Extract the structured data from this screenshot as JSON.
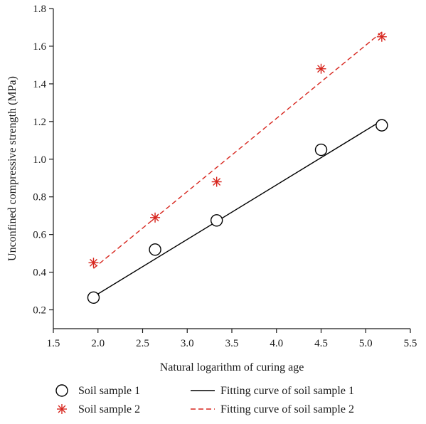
{
  "chart_data": {
    "type": "scatter",
    "title": "",
    "xlabel": "Natural logarithm of curing age",
    "ylabel": "Unconfined compressive strength (MPa)",
    "xlim": [
      1.5,
      5.5
    ],
    "ylim": [
      0.1,
      1.8
    ],
    "xticks": [
      "1.5",
      "2.0",
      "2.5",
      "3.0",
      "3.5",
      "4.0",
      "4.5",
      "5.0",
      "5.5"
    ],
    "yticks": [
      "0.2",
      "0.4",
      "0.6",
      "0.8",
      "1.0",
      "1.2",
      "1.4",
      "1.6",
      "1.8"
    ],
    "grid": false,
    "legend_position": "bottom",
    "series": [
      {
        "name": "Soil sample 1",
        "marker": "circle",
        "color": "#000000",
        "x": [
          1.95,
          2.64,
          3.33,
          4.5,
          5.18
        ],
        "y": [
          0.265,
          0.52,
          0.675,
          1.05,
          1.18
        ]
      },
      {
        "name": "Soil sample 2",
        "marker": "asterisk",
        "color": "#d7261e",
        "x": [
          1.95,
          2.64,
          3.33,
          4.5,
          5.18
        ],
        "y": [
          0.45,
          0.69,
          0.88,
          1.48,
          1.65
        ]
      }
    ],
    "fit_lines": [
      {
        "name": "Fitting curve of soil sample 1",
        "style": "solid",
        "color": "#000000",
        "x": [
          1.95,
          5.18
        ],
        "y": [
          0.27,
          1.205
        ]
      },
      {
        "name": "Fitting curve of soil sample 2",
        "style": "dashed",
        "color": "#d7261e",
        "x": [
          1.95,
          5.18
        ],
        "y": [
          0.42,
          1.675
        ]
      }
    ]
  }
}
